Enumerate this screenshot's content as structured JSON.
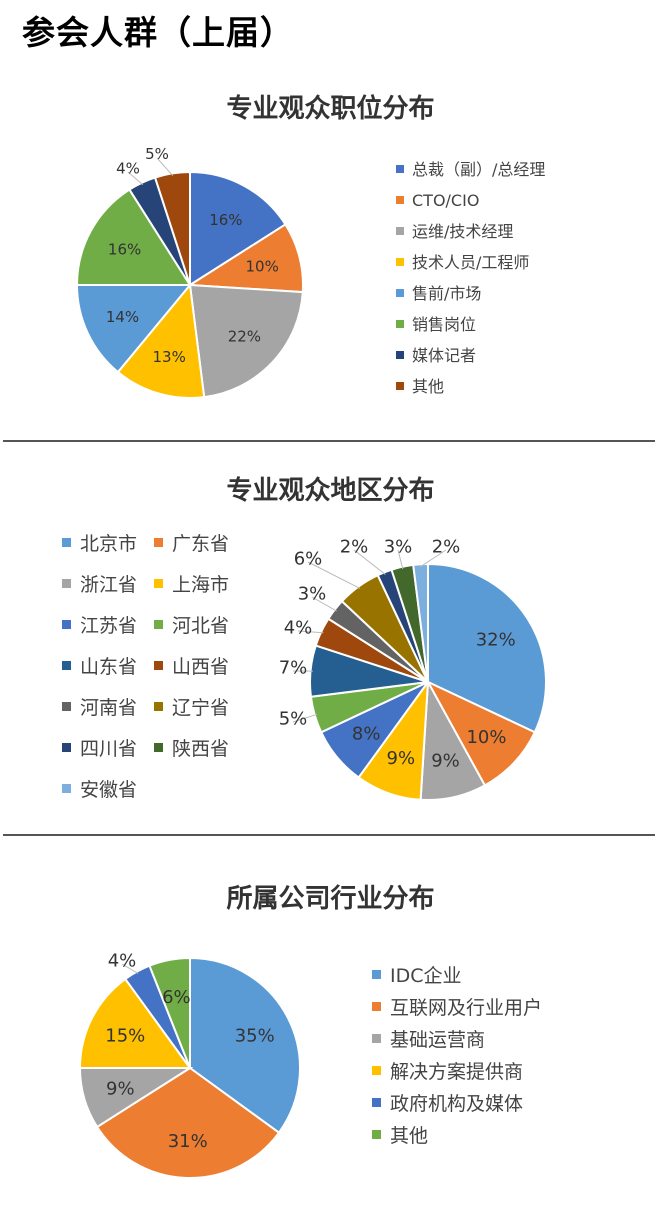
{
  "page_title": "参会人群（上届",
  "page_title_bracket": "）",
  "chart_data": [
    {
      "type": "pie",
      "title": "专业观众职位分布",
      "categories": [
        "总裁（副）/总经理",
        "CTO/CIO",
        "运维/技术经理",
        "技术人员/工程师",
        "售前/市场",
        "销售岗位",
        "媒体记者",
        "其他"
      ],
      "values": [
        16,
        10,
        22,
        13,
        14,
        16,
        4,
        5
      ],
      "data_labels": [
        "16%",
        "10%",
        "22%",
        "13%",
        "14%",
        "16%",
        "4%",
        "5%"
      ],
      "colors": [
        "#4472C4",
        "#ED7D31",
        "#A5A5A5",
        "#FFC000",
        "#5B9BD5",
        "#70AD47",
        "#264478",
        "#9E480E"
      ],
      "legend_position": "right"
    },
    {
      "type": "pie",
      "title": "专业观众地区分布",
      "categories": [
        "北京市",
        "广东省",
        "浙江省",
        "上海市",
        "江苏省",
        "河北省",
        "山东省",
        "山西省",
        "河南省",
        "辽宁省",
        "四川省",
        "陕西省",
        "安徽省"
      ],
      "values": [
        32,
        10,
        9,
        9,
        8,
        5,
        7,
        4,
        3,
        6,
        2,
        3,
        2
      ],
      "data_labels": [
        "32%",
        "10%",
        "9%",
        "9%",
        "8%",
        "5%",
        "7%",
        "4%",
        "3%",
        "6%",
        "2%",
        "3%",
        "2%"
      ],
      "colors": [
        "#5B9BD5",
        "#ED7D31",
        "#A5A5A5",
        "#FFC000",
        "#4472C4",
        "#70AD47",
        "#255E91",
        "#9E480E",
        "#636363",
        "#997300",
        "#264478",
        "#43682B",
        "#7CAFDD"
      ],
      "legend_position": "left"
    },
    {
      "type": "pie",
      "title": "所属公司行业分布",
      "categories": [
        "IDC企业",
        "互联网及行业用户",
        "基础运营商",
        "解决方案提供商",
        "政府机构及媒体",
        "其他"
      ],
      "values": [
        35,
        31,
        9,
        15,
        4,
        6
      ],
      "data_labels": [
        "35%",
        "31%",
        "9%",
        "15%",
        "4%",
        "6%"
      ],
      "colors": [
        "#5B9BD5",
        "#ED7D31",
        "#A5A5A5",
        "#FFC000",
        "#4472C4",
        "#70AD47"
      ],
      "legend_position": "right"
    }
  ]
}
